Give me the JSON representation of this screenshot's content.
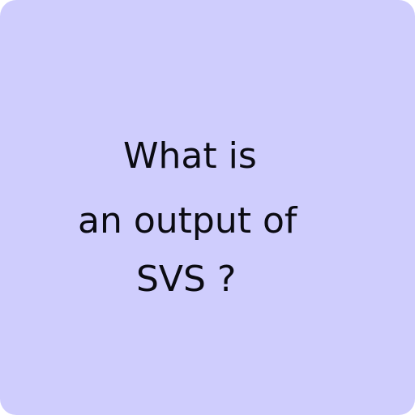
{
  "card": {
    "background_color": "#cfcdfd",
    "text_color": "#0b0b12",
    "question_lines": [
      "What is",
      "an output of",
      "SVS ?"
    ]
  }
}
